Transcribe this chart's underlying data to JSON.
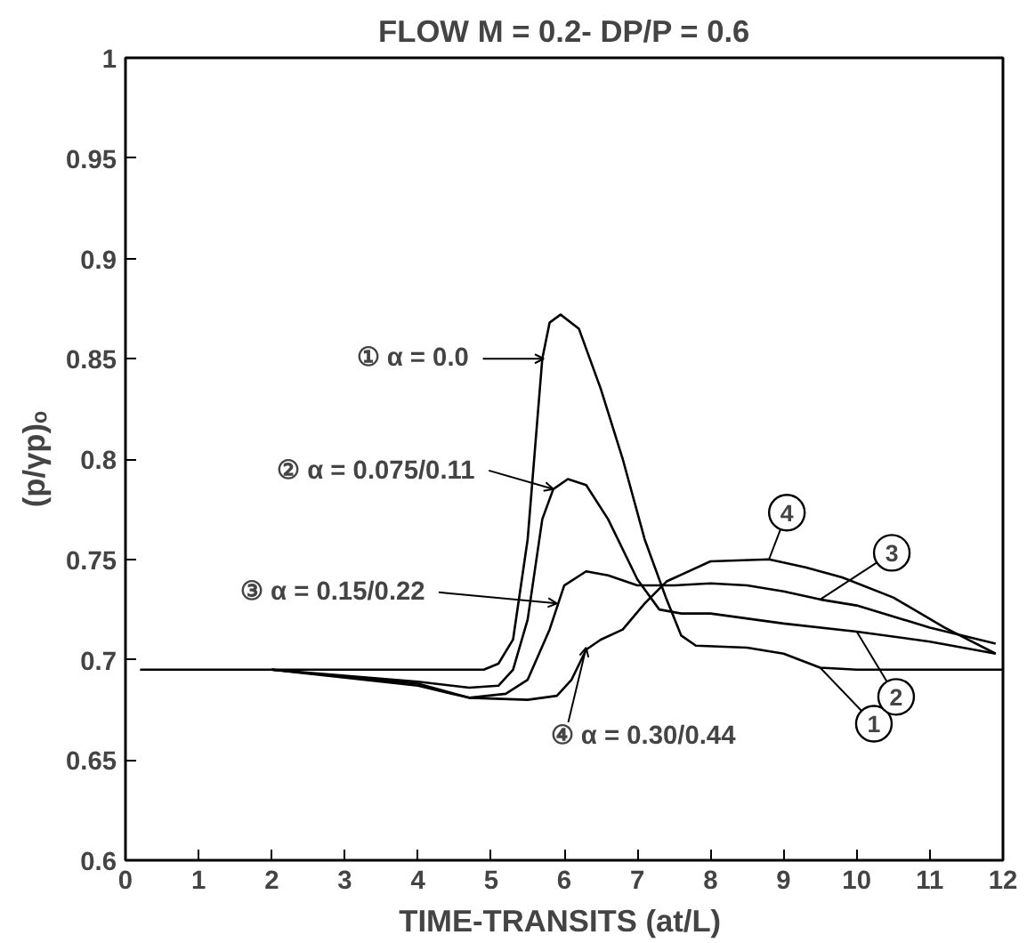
{
  "chart_data": {
    "type": "line",
    "title": "FLOW M = 0.2- DP/P = 0.6",
    "xlabel": "TIME-TRANSITS  (at/L)",
    "ylabel": "(p/γp)ₒ",
    "xlim": [
      0,
      12
    ],
    "ylim": [
      0.6,
      1
    ],
    "xticks": [
      0,
      1,
      2,
      3,
      4,
      5,
      6,
      7,
      8,
      9,
      10,
      11,
      12
    ],
    "yticks": [
      0.6,
      0.65,
      0.7,
      0.75,
      0.8,
      0.85,
      0.9,
      0.95,
      1
    ],
    "grid": false,
    "marker": "none",
    "line_style": "solid",
    "series": [
      {
        "name": "1",
        "color": "#000000",
        "x": [
          0.2,
          2,
          4.9,
          5.1,
          5.3,
          5.5,
          5.7,
          5.8,
          5.95,
          6.2,
          6.5,
          6.8,
          7.1,
          7.4,
          7.6,
          7.8,
          8.5,
          9.0,
          9.5,
          10,
          12
        ],
        "values": [
          0.695,
          0.695,
          0.695,
          0.698,
          0.71,
          0.76,
          0.85,
          0.868,
          0.872,
          0.865,
          0.835,
          0.8,
          0.76,
          0.73,
          0.712,
          0.707,
          0.706,
          0.703,
          0.696,
          0.695,
          0.695
        ]
      },
      {
        "name": "2",
        "color": "#000000",
        "x": [
          2,
          3,
          4,
          4.7,
          5.1,
          5.3,
          5.5,
          5.7,
          5.85,
          6.05,
          6.3,
          6.6,
          7,
          7.3,
          7.6,
          8,
          9,
          10,
          11,
          11.9
        ],
        "values": [
          0.695,
          0.692,
          0.689,
          0.686,
          0.687,
          0.695,
          0.72,
          0.77,
          0.785,
          0.79,
          0.787,
          0.77,
          0.74,
          0.725,
          0.723,
          0.723,
          0.718,
          0.714,
          0.709,
          0.703
        ]
      },
      {
        "name": "3",
        "color": "#000000",
        "x": [
          2,
          3,
          4,
          4.7,
          5.2,
          5.5,
          5.8,
          6.0,
          6.3,
          6.6,
          7,
          7.5,
          8,
          8.5,
          9,
          9.5,
          10,
          11,
          11.9
        ],
        "values": [
          0.695,
          0.691,
          0.687,
          0.681,
          0.683,
          0.69,
          0.715,
          0.737,
          0.744,
          0.742,
          0.737,
          0.737,
          0.738,
          0.737,
          0.734,
          0.73,
          0.727,
          0.716,
          0.708
        ]
      },
      {
        "name": "4",
        "color": "#000000",
        "x": [
          2,
          4,
          4.7,
          5.5,
          5.9,
          6.1,
          6.3,
          6.5,
          6.8,
          7.1,
          7.4,
          8,
          8.8,
          9.3,
          9.8,
          10.5,
          11.2,
          11.9
        ],
        "values": [
          0.695,
          0.688,
          0.681,
          0.68,
          0.682,
          0.69,
          0.705,
          0.71,
          0.715,
          0.728,
          0.739,
          0.749,
          0.75,
          0.746,
          0.741,
          0.731,
          0.716,
          0.703
        ]
      }
    ],
    "annotations": [
      {
        "text": "①  α = 0.0",
        "x": 5.72,
        "y": 0.85
      },
      {
        "text": "②  α = 0.075/0.11",
        "x": 5.85,
        "y": 0.785
      },
      {
        "text": "③  α = 0.15/0.22",
        "x": 5.9,
        "y": 0.728
      },
      {
        "text": "④  α = 0.30/0.44",
        "x": 6.3,
        "y": 0.706
      }
    ]
  }
}
